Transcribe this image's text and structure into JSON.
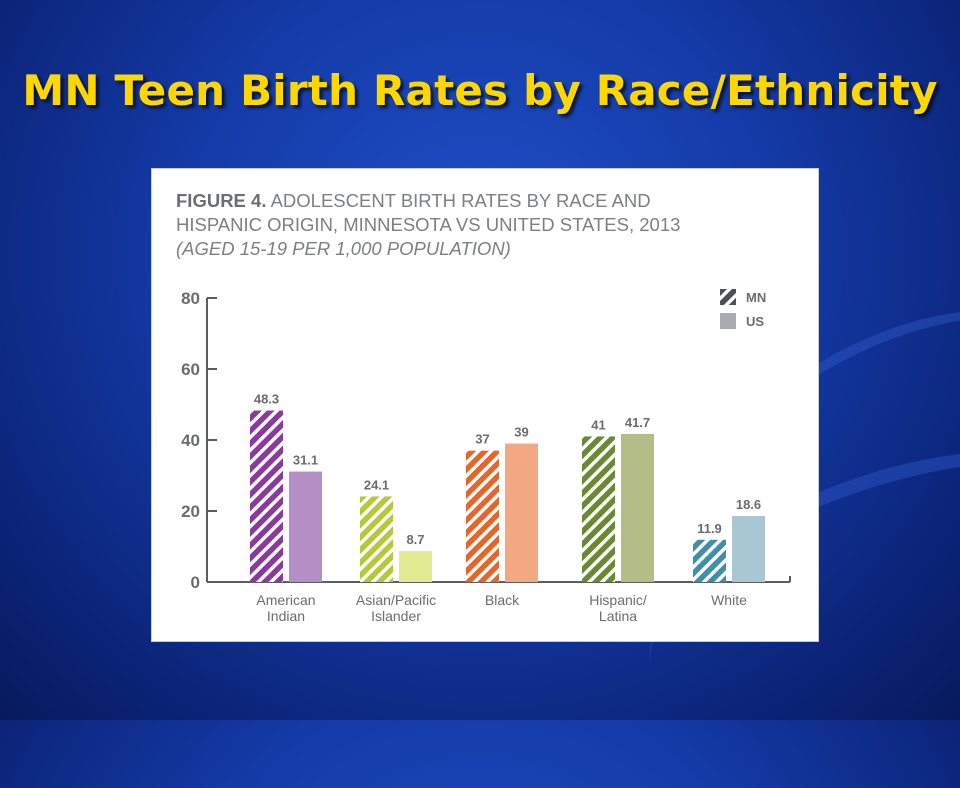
{
  "slide": {
    "title": "MN Teen Birth Rates by Race/Ethnicity"
  },
  "figure": {
    "label": "FIGURE 4.",
    "title_line1": "ADOLESCENT BIRTH RATES BY RACE AND",
    "title_line2": "HISPANIC ORIGIN, MINNESOTA VS UNITED STATES, 2013",
    "subtitle": "(AGED 15-19 PER 1,000 POPULATION)"
  },
  "chart_data": {
    "type": "bar",
    "categories": [
      [
        "American",
        "Indian"
      ],
      [
        "Asian/Pacific",
        "Islander"
      ],
      [
        "Black"
      ],
      [
        "Hispanic/",
        "Latina"
      ],
      [
        "White"
      ]
    ],
    "series": [
      {
        "name": "MN",
        "values": [
          48.3,
          24.1,
          37,
          41,
          11.9
        ],
        "labels": [
          "48.3",
          "24.1",
          "37",
          "41",
          "11.9"
        ],
        "pattern": "hatched"
      },
      {
        "name": "US",
        "values": [
          31.1,
          8.7,
          39,
          41.7,
          18.6
        ],
        "labels": [
          "31.1",
          "8.7",
          "39",
          "41.7",
          "18.6"
        ],
        "pattern": "solid"
      }
    ],
    "colors": {
      "MN": [
        "#8a3a9c",
        "#b3c93a",
        "#e5662a",
        "#6a8a32",
        "#3f8fa8"
      ],
      "US": [
        "#b48ec4",
        "#e1ea90",
        "#f2a882",
        "#b4bd88",
        "#a9c6d3"
      ]
    },
    "legend_colors": {
      "MN": "#4d4f54",
      "US": "#a9abb0"
    },
    "yticks": [
      0,
      20,
      40,
      60,
      80
    ],
    "ylim": [
      0,
      80
    ],
    "grid": false,
    "legend_position": "top-right"
  }
}
